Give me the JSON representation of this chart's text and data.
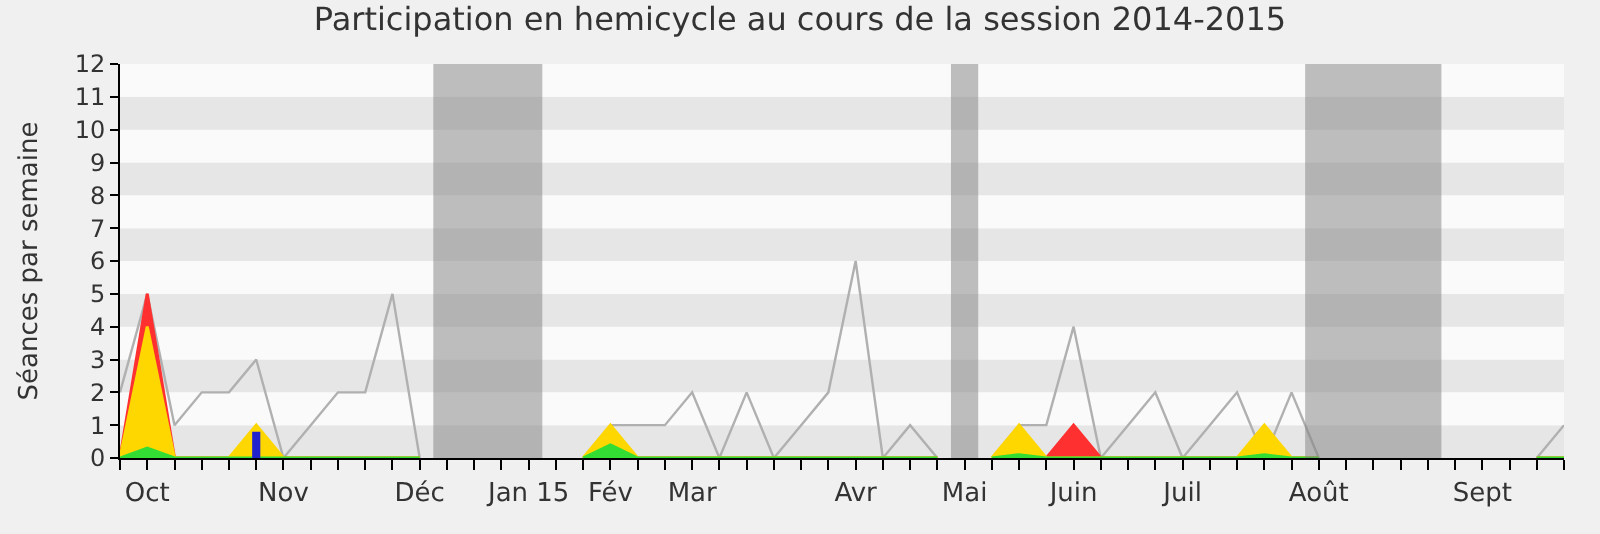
{
  "chart_data": {
    "type": "line",
    "title": "Participation en hemicycle au cours de la session 2014-2015",
    "ylabel": "Séances par semaine",
    "categories": [
      null,
      "Oct",
      null,
      null,
      null,
      null,
      "Nov",
      null,
      null,
      null,
      null,
      "Déc",
      null,
      null,
      null,
      "Jan 15",
      null,
      null,
      "Fév",
      null,
      null,
      "Mar",
      null,
      null,
      null,
      null,
      null,
      "Avr",
      null,
      null,
      null,
      "Mai",
      null,
      null,
      null,
      "Juin",
      null,
      null,
      null,
      "Juil",
      null,
      null,
      null,
      null,
      "Août",
      null,
      null,
      null,
      null,
      null,
      "Sept",
      null,
      null,
      null
    ],
    "series": [
      {
        "color": "#b0b0b0",
        "values": [
          2,
          5,
          1,
          2,
          2,
          3,
          0,
          1,
          2,
          2,
          5,
          0,
          null,
          null,
          null,
          null,
          null,
          0,
          1,
          1,
          1,
          2,
          0,
          2,
          0,
          1,
          2,
          6,
          0,
          1,
          0,
          null,
          0,
          1,
          1,
          4,
          0,
          1,
          2,
          0,
          1,
          2,
          0,
          2,
          0,
          null,
          null,
          null,
          null,
          null,
          null,
          null,
          0,
          1
        ]
      },
      {
        "type": "area",
        "color": "#ff3030",
        "values": [
          0,
          5,
          0,
          0,
          0,
          0,
          0,
          0,
          0,
          0,
          0,
          0,
          null,
          null,
          null,
          null,
          null,
          0,
          0,
          0,
          0,
          0,
          0,
          0,
          0,
          0,
          0,
          0,
          0,
          0,
          0,
          null,
          0,
          0,
          0,
          1,
          0,
          0,
          0,
          0,
          0,
          0,
          0,
          0,
          0,
          null,
          null,
          null,
          null,
          null,
          null,
          null,
          0,
          0
        ]
      },
      {
        "type": "area",
        "color": "#ffd700",
        "values": [
          0,
          4,
          0,
          0,
          0,
          1,
          0,
          0,
          0,
          0,
          0,
          0,
          null,
          null,
          null,
          null,
          null,
          0,
          1,
          0,
          0,
          0,
          0,
          0,
          0,
          0,
          0,
          0,
          0,
          0,
          0,
          null,
          0,
          1,
          0,
          0,
          0,
          0,
          0,
          0,
          0,
          0,
          1,
          0,
          0,
          null,
          null,
          null,
          null,
          null,
          null,
          null,
          0,
          0
        ]
      },
      {
        "type": "area",
        "color": "#33dd33",
        "values": [
          0,
          0.3,
          0,
          0,
          0,
          0,
          0,
          0,
          0,
          0,
          0,
          0,
          null,
          null,
          null,
          null,
          null,
          0,
          0.4,
          0,
          0,
          0,
          0,
          0,
          0,
          0,
          0,
          0,
          0,
          0,
          0,
          null,
          0,
          0.1,
          0,
          0,
          0,
          0,
          0,
          0,
          0,
          0,
          0.1,
          0,
          0,
          null,
          null,
          null,
          null,
          null,
          null,
          null,
          0,
          0
        ]
      },
      {
        "type": "bar",
        "color": "#2222cc",
        "values": [
          0,
          0,
          0,
          0,
          0,
          0.8,
          0,
          0,
          0,
          0,
          0,
          0,
          null,
          null,
          null,
          null,
          null,
          0,
          0,
          0,
          0,
          0,
          0,
          0,
          0,
          0,
          0,
          0,
          0,
          0,
          0,
          null,
          0,
          0,
          0,
          0,
          0,
          0,
          0,
          0,
          0,
          0,
          0,
          0,
          0,
          null,
          null,
          null,
          null,
          null,
          null,
          null,
          0,
          0
        ]
      }
    ],
    "ylim": [
      0,
      12
    ],
    "yticks": [
      0,
      1,
      2,
      3,
      4,
      5,
      6,
      7,
      8,
      9,
      10,
      11,
      12
    ],
    "marker": "none"
  }
}
